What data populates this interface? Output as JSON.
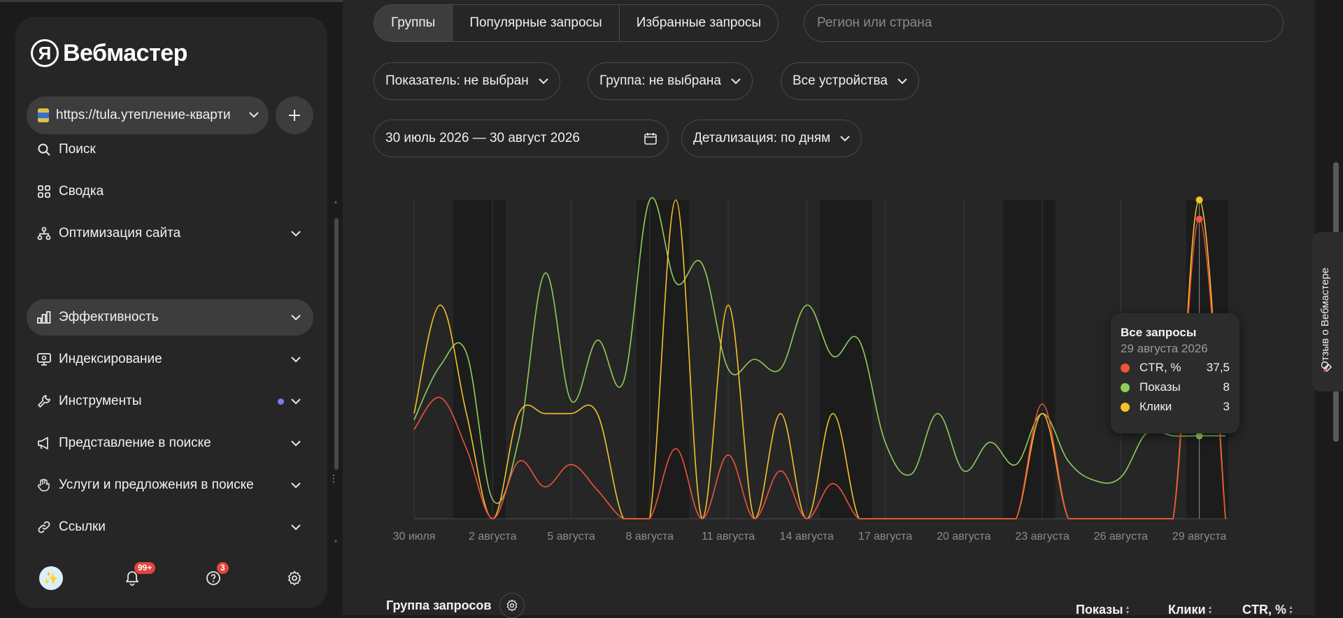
{
  "sidebar": {
    "logo_letter": "Я",
    "logo_text": "Вебмастер",
    "site_url": "https://tula.утепление-квартир",
    "nav": [
      {
        "label": "Поиск",
        "icon": "search-icon",
        "chevron": false,
        "dot": false,
        "active": false
      },
      {
        "label": "Сводка",
        "icon": "dashboard-icon",
        "chevron": false,
        "dot": false,
        "active": false
      },
      {
        "label": "Оптимизация сайта",
        "icon": "sitemap-icon",
        "chevron": true,
        "dot": false,
        "active": false
      },
      {
        "label": "Эффективность",
        "icon": "bar-chart-icon",
        "chevron": true,
        "dot": false,
        "active": true
      },
      {
        "label": "Индексирование",
        "icon": "monitor-icon",
        "chevron": true,
        "dot": false,
        "active": false
      },
      {
        "label": "Инструменты",
        "icon": "wrench-icon",
        "chevron": true,
        "dot": true,
        "active": false
      },
      {
        "label": "Представление в поиске",
        "icon": "megaphone-icon",
        "chevron": true,
        "dot": false,
        "active": false
      },
      {
        "label": "Услуги и предложения в поиске",
        "icon": "hand-icon",
        "chevron": true,
        "dot": false,
        "active": false
      },
      {
        "label": "Ссылки",
        "icon": "link-icon",
        "chevron": true,
        "dot": false,
        "active": false
      }
    ],
    "footer": {
      "notifications_badge": "99+",
      "help_badge": "3"
    }
  },
  "main": {
    "tabs": [
      {
        "label": "Группы",
        "active": true
      },
      {
        "label": "Популярные запросы",
        "active": false
      },
      {
        "label": "Избранные запросы",
        "active": false
      }
    ],
    "region_placeholder": "Регион или страна",
    "filters": {
      "metric": "Показатель: не выбран",
      "group": "Группа: не выбрана",
      "devices": "Все устройства",
      "date_range": "30 июль 2026 — 30 август 2026",
      "detail": "Детализация: по дням"
    },
    "table": {
      "group_header": "Группа запросов",
      "col_shows": "Показы",
      "col_clicks": "Клики",
      "col_ctr": "CTR, %"
    }
  },
  "tooltip": {
    "title": "Все запросы",
    "date": "29 августа 2026",
    "rows": [
      {
        "label": "CTR, %",
        "value": "37,5",
        "color": "#f0523c"
      },
      {
        "label": "Показы",
        "value": "8",
        "color": "#8fce5c"
      },
      {
        "label": "Клики",
        "value": "3",
        "color": "#f5c22b"
      }
    ]
  },
  "feedback_label": "Отзыв о Вебмастере",
  "chart_data": {
    "type": "line",
    "x": [
      "30 июля",
      "31 июля",
      "1 августа",
      "2 августа",
      "3 августа",
      "4 августа",
      "5 августа",
      "6 августа",
      "7 августа",
      "8 августа",
      "9 августа",
      "10 августа",
      "11 августа",
      "12 августа",
      "13 августа",
      "14 августа",
      "15 августа",
      "16 августа",
      "17 августа",
      "18 августа",
      "19 августа",
      "20 августа",
      "21 августа",
      "22 августа",
      "23 августа",
      "24 августа",
      "25 августа",
      "26 августа",
      "27 августа",
      "28 августа",
      "29 августа",
      "30 августа"
    ],
    "tick_labels": [
      "30 июля",
      "2 августа",
      "5 августа",
      "8 августа",
      "11 августа",
      "14 августа",
      "17 августа",
      "20 августа",
      "23 августа",
      "26 августа",
      "29 августа"
    ],
    "series": [
      {
        "name": "Показы",
        "color": "#8fce5c",
        "values": [
          31,
          48,
          52,
          6,
          25,
          77,
          37,
          56,
          43,
          100,
          74,
          80,
          47,
          50,
          47,
          67,
          51,
          56,
          24,
          14,
          33,
          15,
          24,
          17,
          33,
          18,
          12,
          13,
          27,
          26,
          26,
          26
        ]
      },
      {
        "name": "Клики",
        "color": "#f5c22b",
        "values": [
          33,
          67,
          33,
          0,
          33,
          33,
          33,
          33,
          0,
          0,
          100,
          0,
          67,
          0,
          33,
          0,
          33,
          0,
          0,
          0,
          0,
          0,
          0,
          0,
          33,
          0,
          0,
          0,
          0,
          0,
          100,
          0
        ]
      },
      {
        "name": "CTR, %",
        "color": "#f0523c",
        "values": [
          28,
          38,
          22,
          0,
          18,
          10,
          17,
          9,
          0,
          0,
          22,
          0,
          20,
          0,
          15,
          0,
          11,
          0,
          0,
          0,
          0,
          0,
          0,
          0,
          36,
          0,
          0,
          0,
          0,
          0,
          94,
          0
        ]
      }
    ],
    "weekend_bands": [
      [
        "1 августа",
        "2 августа"
      ],
      [
        "8 августа",
        "9 августа"
      ],
      [
        "15 августа",
        "16 августа"
      ],
      [
        "22 августа",
        "23 августа"
      ],
      [
        "29 августа",
        "30 августа"
      ]
    ],
    "highlight_x": "29 августа",
    "grid": true
  }
}
